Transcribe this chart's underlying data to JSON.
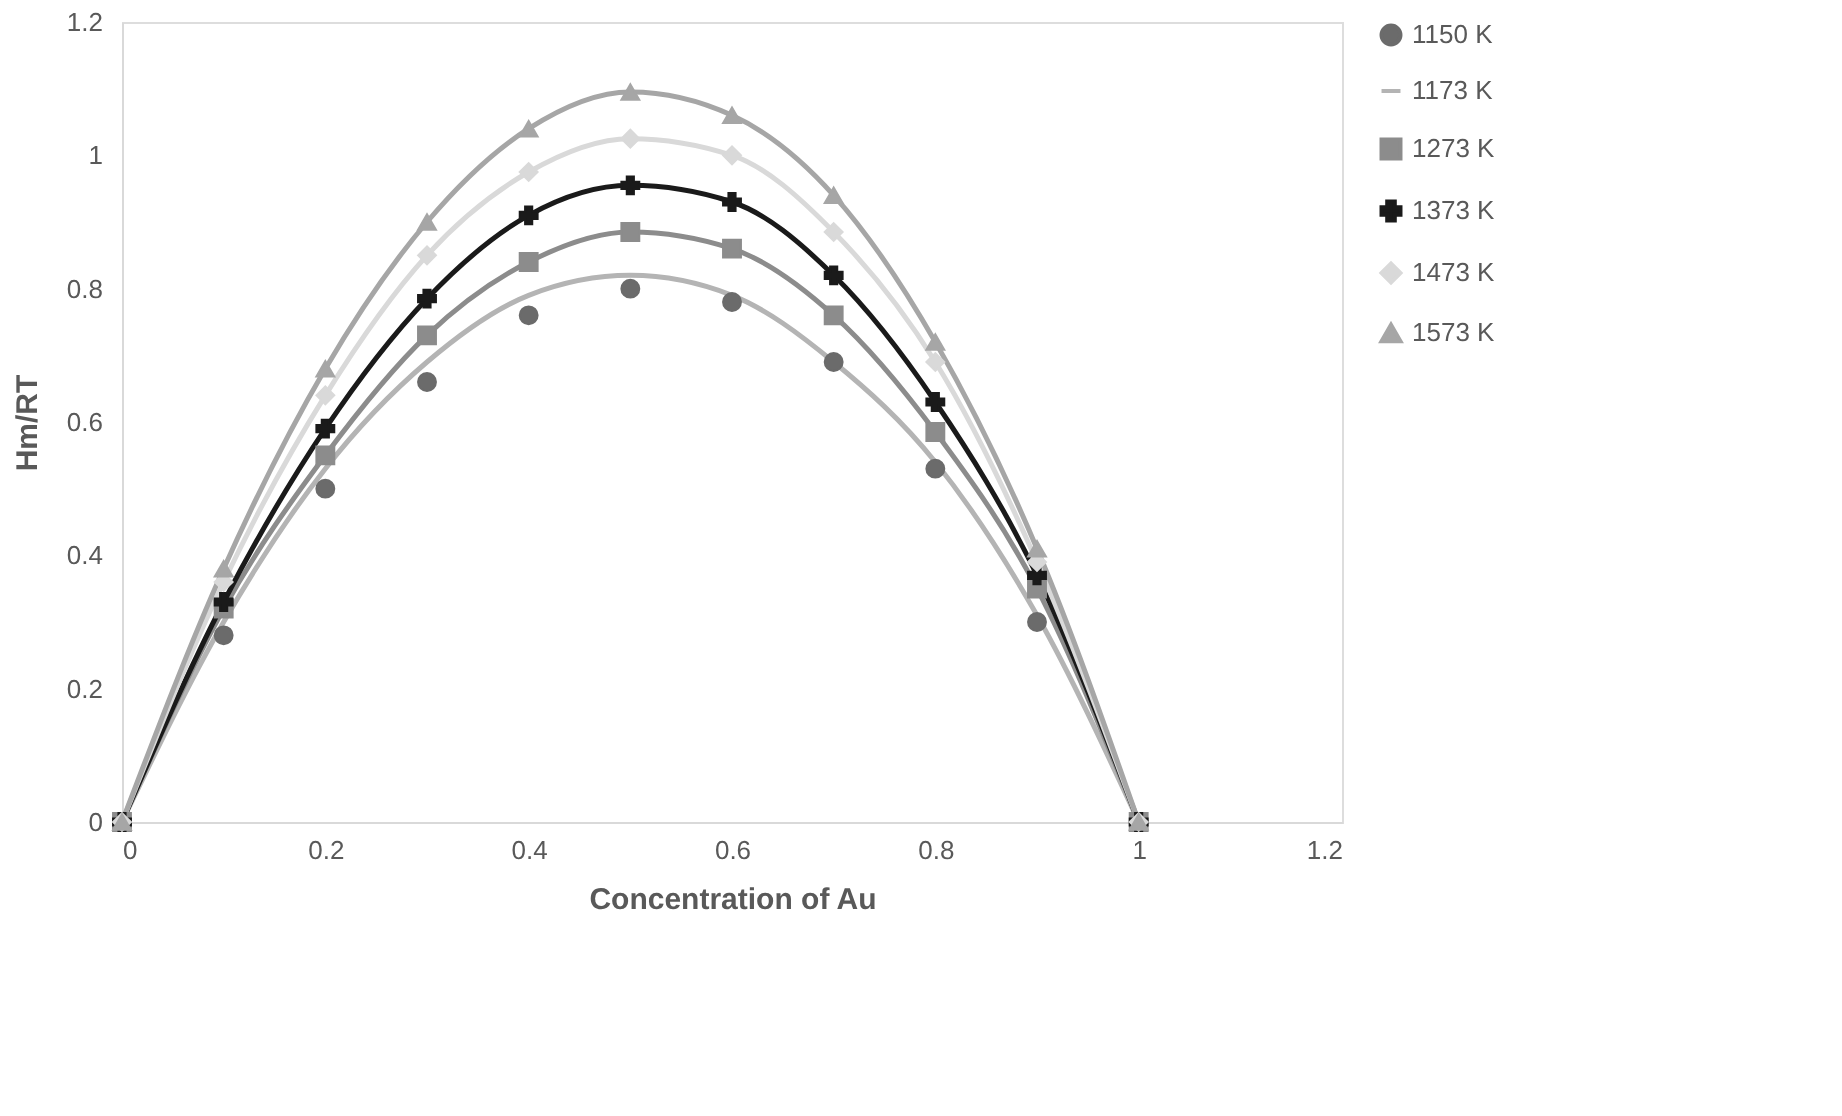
{
  "chart_data": {
    "type": "line",
    "xlabel": "Concentration of Au",
    "ylabel": "Hm/RT",
    "x": [
      0,
      0.1,
      0.2,
      0.3,
      0.4,
      0.5,
      0.6,
      0.7,
      0.8,
      0.9,
      1
    ],
    "xlim": [
      0,
      1.2
    ],
    "xticks": [
      0,
      0.2,
      0.4,
      0.6,
      0.8,
      1,
      1.2
    ],
    "ylim": [
      0,
      1.2
    ],
    "yticks": [
      0,
      0.2,
      0.4,
      0.6,
      0.8,
      1,
      1.2
    ],
    "grid": false,
    "legend": "right",
    "line_style": "solid",
    "series": [
      {
        "name": "1150 K",
        "type": "scatter",
        "marker": "circle",
        "color": "#6b6b6b",
        "values": [
          null,
          0.28,
          0.5,
          0.66,
          0.76,
          0.8,
          0.78,
          0.69,
          0.53,
          0.3,
          null
        ]
      },
      {
        "name": "1173 K",
        "type": "line",
        "marker": "none",
        "color": "#b4b4b4",
        "values": [
          0,
          0.3,
          0.53,
          0.69,
          0.79,
          0.82,
          0.79,
          0.69,
          0.54,
          0.31,
          0
        ]
      },
      {
        "name": "1273 K",
        "type": "line",
        "marker": "square",
        "color": "#8c8c8c",
        "values": [
          0,
          0.32,
          0.55,
          0.73,
          0.84,
          0.885,
          0.86,
          0.76,
          0.585,
          0.35,
          0
        ]
      },
      {
        "name": "1373 K",
        "type": "line",
        "marker": "cross",
        "color": "#1a1a1a",
        "values": [
          0,
          0.33,
          0.59,
          0.785,
          0.91,
          0.955,
          0.93,
          0.82,
          0.63,
          0.37,
          0
        ]
      },
      {
        "name": "1473 K",
        "type": "line",
        "marker": "diamond",
        "color": "#d9d9d9",
        "values": [
          0,
          0.36,
          0.64,
          0.85,
          0.975,
          1.025,
          1.0,
          0.885,
          0.69,
          0.39,
          0
        ]
      },
      {
        "name": "1573 K",
        "type": "line",
        "marker": "triangle",
        "color": "#a6a6a6",
        "values": [
          0,
          0.38,
          0.68,
          0.9,
          1.04,
          1.095,
          1.06,
          0.94,
          0.72,
          0.41,
          0
        ]
      }
    ]
  }
}
